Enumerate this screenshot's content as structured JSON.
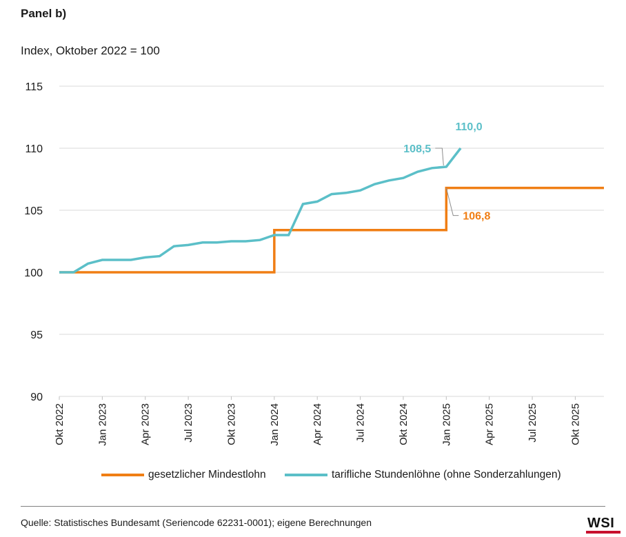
{
  "panel_title": "Panel b)",
  "subtitle": "Index, Oktober 2022 = 100",
  "source": "Quelle: Statistisches Bundesamt (Seriencode 62231-0001); eigene Berechnungen",
  "logo_text": "WSI",
  "colors": {
    "mindestlohn": "#F07E14",
    "tarif": "#5BBFC8",
    "grid": "#d9d9d9",
    "logo_accent": "#C8102E"
  },
  "chart_data": {
    "type": "line",
    "title": "",
    "ylabel": "Index, Oktober 2022 = 100",
    "ylim": [
      90,
      115
    ],
    "yticks": [
      115,
      110,
      105,
      100,
      95,
      90
    ],
    "x_start": "2022-10",
    "x_end": "2025-12",
    "x_tick_labels": [
      "Okt 2022",
      "Jan 2023",
      "Apr 2023",
      "Jul 2023",
      "Okt 2023",
      "Jan 2024",
      "Apr 2024",
      "Jul 2024",
      "Okt 2024",
      "Jan 2025",
      "Apr 2025",
      "Jul 2025",
      "Okt 2025"
    ],
    "x_tick_months": [
      "2022-10",
      "2023-01",
      "2023-04",
      "2023-07",
      "2023-10",
      "2024-01",
      "2024-04",
      "2024-07",
      "2024-10",
      "2025-01",
      "2025-04",
      "2025-07",
      "2025-10"
    ],
    "grid": true,
    "legend_position": "bottom",
    "series": [
      {
        "name": "gesetzlicher Mindestlohn",
        "color_key": "mindestlohn",
        "step": true,
        "points": [
          {
            "x": "2022-10",
            "y": 100.0
          },
          {
            "x": "2024-01",
            "y": 103.4
          },
          {
            "x": "2025-01",
            "y": 106.8
          },
          {
            "x": "2025-12",
            "y": 106.8
          }
        ],
        "annotation": {
          "label": "106,8",
          "x": "2025-01",
          "y": 106.8
        }
      },
      {
        "name": "tarifliche Stundenlöhne (ohne Sonderzahlungen)",
        "color_key": "tarif",
        "step": false,
        "points": [
          {
            "x": "2022-10",
            "y": 100.0
          },
          {
            "x": "2022-11",
            "y": 100.0
          },
          {
            "x": "2022-12",
            "y": 100.7
          },
          {
            "x": "2023-01",
            "y": 101.0
          },
          {
            "x": "2023-02",
            "y": 101.0
          },
          {
            "x": "2023-03",
            "y": 101.0
          },
          {
            "x": "2023-04",
            "y": 101.2
          },
          {
            "x": "2023-05",
            "y": 101.3
          },
          {
            "x": "2023-06",
            "y": 102.1
          },
          {
            "x": "2023-07",
            "y": 102.2
          },
          {
            "x": "2023-08",
            "y": 102.4
          },
          {
            "x": "2023-09",
            "y": 102.4
          },
          {
            "x": "2023-10",
            "y": 102.5
          },
          {
            "x": "2023-11",
            "y": 102.5
          },
          {
            "x": "2023-12",
            "y": 102.6
          },
          {
            "x": "2024-01",
            "y": 103.0
          },
          {
            "x": "2024-02",
            "y": 103.0
          },
          {
            "x": "2024-03",
            "y": 105.5
          },
          {
            "x": "2024-04",
            "y": 105.7
          },
          {
            "x": "2024-05",
            "y": 106.3
          },
          {
            "x": "2024-06",
            "y": 106.4
          },
          {
            "x": "2024-07",
            "y": 106.6
          },
          {
            "x": "2024-08",
            "y": 107.1
          },
          {
            "x": "2024-09",
            "y": 107.4
          },
          {
            "x": "2024-10",
            "y": 107.6
          },
          {
            "x": "2024-11",
            "y": 108.1
          },
          {
            "x": "2024-12",
            "y": 108.4
          },
          {
            "x": "2025-01",
            "y": 108.5
          },
          {
            "x": "2025-02",
            "y": 110.0
          }
        ],
        "annotations": [
          {
            "label": "108,5",
            "x": "2025-01",
            "y": 108.5
          },
          {
            "label": "110,0",
            "x": "2025-02",
            "y": 110.0
          }
        ]
      }
    ]
  }
}
